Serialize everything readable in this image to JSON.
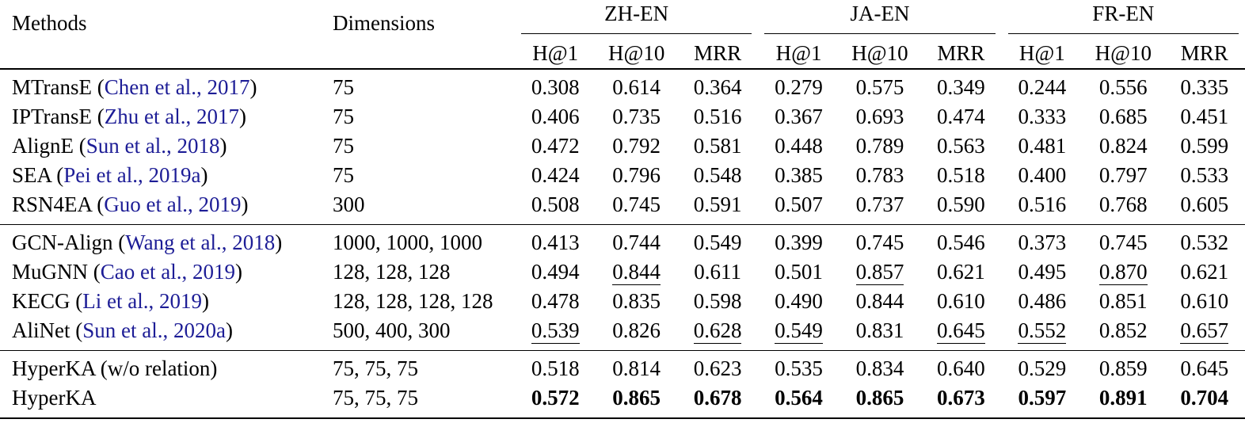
{
  "page": {
    "background_color": "#ffffff",
    "text_color": "#000000",
    "citation_color": "#1d1d96"
  },
  "table": {
    "headers": {
      "methods": "Methods",
      "dimensions": "Dimensions"
    },
    "groups": [
      {
        "label": "ZH-EN"
      },
      {
        "label": "JA-EN"
      },
      {
        "label": "FR-EN"
      }
    ],
    "metrics": [
      "H@1",
      "H@10",
      "MRR"
    ],
    "sections": [
      {
        "rows": [
          {
            "method": "MTransE",
            "citation": "Chen et al., 2017",
            "dimensions": "75",
            "values": [
              "0.308",
              "0.614",
              "0.364",
              "0.279",
              "0.575",
              "0.349",
              "0.244",
              "0.556",
              "0.335"
            ]
          },
          {
            "method": "IPTransE",
            "citation": "Zhu et al., 2017",
            "dimensions": "75",
            "values": [
              "0.406",
              "0.735",
              "0.516",
              "0.367",
              "0.693",
              "0.474",
              "0.333",
              "0.685",
              "0.451"
            ]
          },
          {
            "method": "AlignE",
            "citation": "Sun et al., 2018",
            "dimensions": "75",
            "values": [
              "0.472",
              "0.792",
              "0.581",
              "0.448",
              "0.789",
              "0.563",
              "0.481",
              "0.824",
              "0.599"
            ]
          },
          {
            "method": "SEA",
            "citation": "Pei et al., 2019a",
            "dimensions": "75",
            "values": [
              "0.424",
              "0.796",
              "0.548",
              "0.385",
              "0.783",
              "0.518",
              "0.400",
              "0.797",
              "0.533"
            ]
          },
          {
            "method": "RSN4EA",
            "citation": "Guo et al., 2019",
            "dimensions": "300",
            "values": [
              "0.508",
              "0.745",
              "0.591",
              "0.507",
              "0.737",
              "0.590",
              "0.516",
              "0.768",
              "0.605"
            ]
          }
        ]
      },
      {
        "rows": [
          {
            "method": "GCN-Align",
            "citation": "Wang et al., 2018",
            "dimensions": "1000, 1000, 1000",
            "values": [
              "0.413",
              "0.744",
              "0.549",
              "0.399",
              "0.745",
              "0.546",
              "0.373",
              "0.745",
              "0.532"
            ]
          },
          {
            "method": "MuGNN",
            "citation": "Cao et al., 2019",
            "dimensions": "128, 128, 128",
            "values": [
              "0.494",
              "0.844",
              "0.611",
              "0.501",
              "0.857",
              "0.621",
              "0.495",
              "0.870",
              "0.621"
            ],
            "underline": [
              1,
              4,
              7
            ]
          },
          {
            "method": "KECG",
            "citation": "Li et al., 2019",
            "dimensions": "128, 128, 128, 128",
            "values": [
              "0.478",
              "0.835",
              "0.598",
              "0.490",
              "0.844",
              "0.610",
              "0.486",
              "0.851",
              "0.610"
            ]
          },
          {
            "method": "AliNet",
            "citation": "Sun et al., 2020a",
            "dimensions": "500, 400, 300",
            "values": [
              "0.539",
              "0.826",
              "0.628",
              "0.549",
              "0.831",
              "0.645",
              "0.552",
              "0.852",
              "0.657"
            ],
            "underline": [
              0,
              2,
              3,
              5,
              6,
              8
            ]
          }
        ]
      },
      {
        "rows": [
          {
            "method": "HyperKA (w/o relation)",
            "citation": null,
            "dimensions": "75, 75, 75",
            "values": [
              "0.518",
              "0.814",
              "0.623",
              "0.535",
              "0.834",
              "0.640",
              "0.529",
              "0.859",
              "0.645"
            ]
          },
          {
            "method": "HyperKA",
            "citation": null,
            "dimensions": "75, 75, 75",
            "values": [
              "0.572",
              "0.865",
              "0.678",
              "0.564",
              "0.865",
              "0.673",
              "0.597",
              "0.891",
              "0.704"
            ],
            "bold": true
          }
        ]
      }
    ]
  }
}
